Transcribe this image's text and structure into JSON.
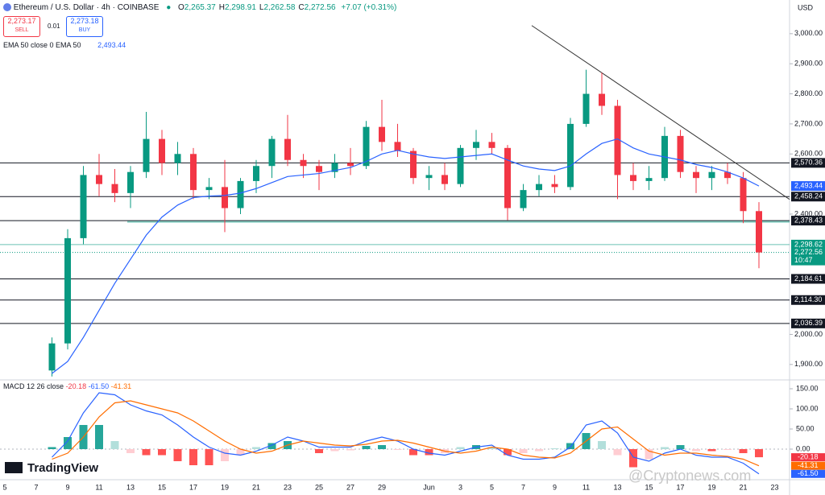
{
  "header": {
    "title": "Ethereum / U.S. Dollar · 4h · COINBASE",
    "ohlc": [
      {
        "label": "O",
        "value": "2,265.37"
      },
      {
        "label": "H",
        "value": "2,298.91"
      },
      {
        "label": "L",
        "value": "2,262.58"
      },
      {
        "label": "C",
        "value": "2,272.56"
      }
    ],
    "change": "+7.07 (+0.31%)",
    "sell": {
      "price": "2,273.17",
      "label": "SELL"
    },
    "spread": "0.01",
    "buy": {
      "price": "2,273.18",
      "label": "BUY"
    },
    "indicator": "EMA 50 close 0 EMA 50",
    "indicator_value": "2,493.44",
    "macd_legend": "MACD 12 26 close",
    "macd_values": [
      "-20.18",
      "-61.50",
      "-41.31"
    ],
    "currency": "USD",
    "brand": "TradingView",
    "watermark": "@Cryptonews.com"
  },
  "chart_data": {
    "type": "candlestick",
    "ylim": [
      1854,
      3112
    ],
    "yticks": [
      {
        "value": 3000,
        "label": "3,000.00"
      },
      {
        "value": 2900,
        "label": "2,900.00"
      },
      {
        "value": 2800,
        "label": "2,800.00"
      },
      {
        "value": 2700,
        "label": "2,700.00"
      },
      {
        "value": 2600,
        "label": "2,600.00"
      },
      {
        "value": 2400,
        "label": "2,400.00"
      },
      {
        "value": 2000,
        "label": "2,000.00"
      },
      {
        "value": 1900,
        "label": "1,900.00"
      }
    ],
    "xticks": [
      "5",
      "7",
      "9",
      "11",
      "13",
      "15",
      "17",
      "19",
      "21",
      "23",
      "25",
      "27",
      "29",
      "Jun",
      "3",
      "5",
      "7",
      "9",
      "11",
      "13",
      "15",
      "17",
      "19",
      "21",
      "23"
    ],
    "colors": {
      "up": "#089981",
      "down": "#f23645"
    },
    "open": [
      1880,
      1970,
      2320,
      2530,
      2500,
      2470,
      2540,
      2650,
      2570,
      2600,
      2480,
      2490,
      2420,
      2510,
      2560,
      2650,
      2580,
      2560,
      2540,
      2570,
      2560,
      2690,
      2640,
      2610,
      2520,
      2530,
      2500,
      2620,
      2640,
      2620,
      2420,
      2480,
      2500,
      2490,
      2700,
      2800,
      2760,
      2530,
      2510,
      2520,
      2660,
      2540,
      2520,
      2540,
      2520,
      2410
    ],
    "high": [
      1990,
      2350,
      2560,
      2600,
      2550,
      2560,
      2740,
      2680,
      2640,
      2620,
      2520,
      2580,
      2520,
      2580,
      2660,
      2730,
      2600,
      2580,
      2600,
      2620,
      2710,
      2780,
      2700,
      2620,
      2560,
      2570,
      2630,
      2680,
      2670,
      2630,
      2500,
      2530,
      2530,
      2720,
      2880,
      2870,
      2780,
      2570,
      2560,
      2690,
      2680,
      2560,
      2560,
      2570,
      2540,
      2440
    ],
    "low": [
      1860,
      1950,
      2300,
      2460,
      2440,
      2420,
      2520,
      2530,
      2530,
      2450,
      2450,
      2340,
      2400,
      2470,
      2520,
      2560,
      2520,
      2480,
      2520,
      2530,
      2550,
      2610,
      2590,
      2500,
      2480,
      2480,
      2490,
      2580,
      2600,
      2380,
      2410,
      2460,
      2470,
      2480,
      2690,
      2730,
      2450,
      2480,
      2480,
      2510,
      2520,
      2470,
      2480,
      2500,
      2370,
      2220
    ],
    "close": [
      1970,
      2320,
      2530,
      2500,
      2470,
      2540,
      2650,
      2570,
      2600,
      2480,
      2490,
      2420,
      2510,
      2560,
      2650,
      2580,
      2560,
      2540,
      2570,
      2560,
      2690,
      2640,
      2610,
      2520,
      2530,
      2500,
      2620,
      2640,
      2620,
      2420,
      2480,
      2500,
      2490,
      2700,
      2800,
      2760,
      2530,
      2510,
      2520,
      2660,
      2540,
      2520,
      2540,
      2520,
      2410,
      2272.56
    ],
    "ema": {
      "color": "#2962ff",
      "values": [
        1870,
        1910,
        1990,
        2080,
        2170,
        2250,
        2330,
        2390,
        2430,
        2455,
        2460,
        2462,
        2470,
        2485,
        2505,
        2525,
        2530,
        2535,
        2545,
        2555,
        2575,
        2600,
        2612,
        2600,
        2590,
        2585,
        2590,
        2595,
        2600,
        2580,
        2560,
        2550,
        2545,
        2560,
        2600,
        2635,
        2650,
        2620,
        2600,
        2590,
        2580,
        2565,
        2555,
        2540,
        2520,
        2493.44
      ],
      "last": {
        "value": 2493.44,
        "label": "2,493.44"
      }
    },
    "levels": [
      {
        "value": 2570.36,
        "label": "2,570.36"
      },
      {
        "value": 2458.24,
        "label": "2,458.24"
      },
      {
        "value": 2378.43,
        "label": "2,378.43"
      },
      {
        "value": 2184.61,
        "label": "2,184.61"
      },
      {
        "value": 2114.3,
        "label": "2,114.30"
      },
      {
        "value": 2036.39,
        "label": "2,036.39"
      }
    ],
    "high_line": {
      "value": 2298.62,
      "label": "2,298.62",
      "color": "#089981"
    },
    "last": {
      "value": 2272.56,
      "label": "2,272.56",
      "countdown": "10:47",
      "color": "#089981"
    },
    "trendline": {
      "values": [
        3027,
        2449
      ],
      "color": "#333333"
    },
    "macd": {
      "ylim": [
        -74,
        166
      ],
      "yticks": [
        {
          "value": 150,
          "label": "150.00"
        },
        {
          "value": 100,
          "label": "100.00"
        },
        {
          "value": 50,
          "label": "50.00"
        },
        {
          "value": 0,
          "label": "0.00"
        }
      ],
      "macd": {
        "color": "#2962ff",
        "values": [
          -20,
          20,
          90,
          140,
          135,
          110,
          95,
          85,
          60,
          30,
          5,
          -10,
          -15,
          -5,
          10,
          30,
          20,
          5,
          5,
          5,
          20,
          30,
          20,
          0,
          -10,
          -15,
          -5,
          5,
          10,
          -15,
          -25,
          -25,
          -20,
          5,
          60,
          70,
          40,
          -20,
          -30,
          -10,
          0,
          -15,
          -20,
          -20,
          -35,
          -61.5
        ]
      },
      "signal": {
        "color": "#ff6d00",
        "values": [
          -25,
          -10,
          30,
          80,
          115,
          120,
          110,
          100,
          90,
          70,
          45,
          20,
          0,
          -10,
          -5,
          10,
          20,
          15,
          10,
          8,
          12,
          20,
          22,
          15,
          5,
          -5,
          -10,
          -5,
          5,
          0,
          -15,
          -20,
          -22,
          -10,
          20,
          50,
          55,
          25,
          -5,
          -15,
          -10,
          -10,
          -15,
          -18,
          -25,
          -41.31
        ]
      },
      "histogram": {
        "values": [
          5,
          30,
          60,
          60,
          20,
          -10,
          -15,
          -15,
          -30,
          -40,
          -40,
          -30,
          -15,
          5,
          15,
          20,
          0,
          -10,
          -5,
          -3,
          8,
          10,
          -2,
          -15,
          -15,
          -10,
          5,
          10,
          5,
          -15,
          -10,
          -5,
          2,
          15,
          40,
          20,
          -15,
          -45,
          -25,
          5,
          10,
          -5,
          -5,
          -2,
          -10,
          -20.18
        ]
      },
      "labels": [
        {
          "value": -20.18,
          "label": "-20.18",
          "color": "#f23645"
        },
        {
          "value": -41.31,
          "label": "-41.31",
          "color": "#ff6d00"
        },
        {
          "value": -61.5,
          "label": "-61.50",
          "color": "#2962ff"
        }
      ]
    }
  }
}
